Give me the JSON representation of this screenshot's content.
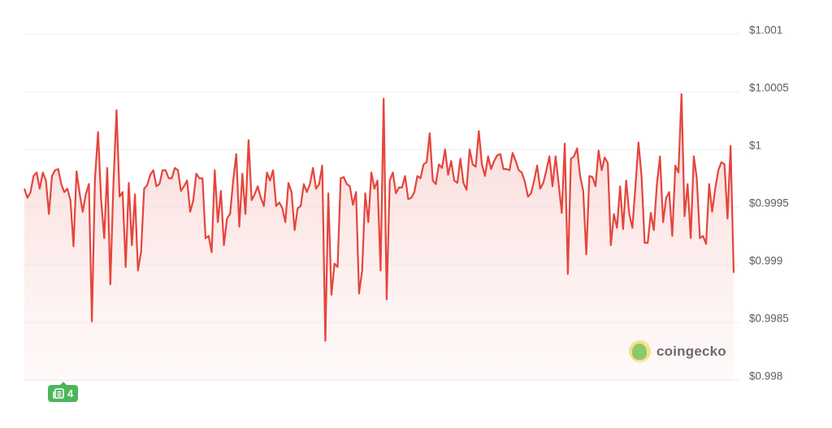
{
  "chart_data": {
    "type": "line",
    "title": "",
    "xlabel": "",
    "ylabel": "",
    "ylim": [
      0.99775,
      1.0011
    ],
    "y_ticks": [
      {
        "value": 1.001,
        "label": "$1.001"
      },
      {
        "value": 1.0005,
        "label": "$1.0005"
      },
      {
        "value": 1.0,
        "label": "$1"
      },
      {
        "value": 0.9995,
        "label": "$0.9995"
      },
      {
        "value": 0.999,
        "label": "$0.999"
      },
      {
        "value": 0.9985,
        "label": "$0.9985"
      },
      {
        "value": 0.998,
        "label": "$0.998"
      }
    ],
    "grid": true,
    "y_axis_position": "right",
    "line_color": "#e5453c",
    "fill": "gradient",
    "values": [
      0.99966,
      0.99958,
      0.99963,
      0.99977,
      0.9998,
      0.99966,
      0.9998,
      0.99973,
      0.99944,
      0.99977,
      0.99982,
      0.99983,
      0.9997,
      0.99963,
      0.99966,
      0.99956,
      0.99916,
      0.99981,
      0.99962,
      0.99946,
      0.99961,
      0.9997,
      0.99851,
      0.99975,
      1.00015,
      0.99956,
      0.99923,
      0.99984,
      0.99883,
      0.9997,
      1.00034,
      0.99959,
      0.99963,
      0.99898,
      0.99971,
      0.99917,
      0.99961,
      0.99895,
      0.99911,
      0.99966,
      0.99969,
      0.99978,
      0.99982,
      0.99968,
      0.9997,
      0.99982,
      0.99982,
      0.99975,
      0.99975,
      0.99984,
      0.99982,
      0.99964,
      0.99968,
      0.99973,
      0.99946,
      0.99956,
      0.99979,
      0.99975,
      0.99975,
      0.99923,
      0.99925,
      0.99911,
      0.99982,
      0.99937,
      0.99964,
      0.99917,
      0.9994,
      0.99944,
      0.99973,
      0.99996,
      0.99933,
      0.99979,
      0.99944,
      1.00008,
      0.99956,
      0.99961,
      0.99968,
      0.99958,
      0.99951,
      0.9998,
      0.99973,
      0.99982,
      0.99951,
      0.99954,
      0.99949,
      0.99937,
      0.99971,
      0.99963,
      0.9993,
      0.99949,
      0.99951,
      0.9997,
      0.99963,
      0.9997,
      0.99984,
      0.99966,
      0.9997,
      0.99986,
      0.99834,
      0.99962,
      0.99874,
      0.99901,
      0.99898,
      0.99975,
      0.99976,
      0.9997,
      0.99968,
      0.99952,
      0.99963,
      0.99875,
      0.99895,
      0.99962,
      0.99937,
      0.9998,
      0.99966,
      0.99973,
      0.99895,
      1.00044,
      0.9987,
      0.99973,
      0.9998,
      0.99962,
      0.99967,
      0.99967,
      0.99977,
      0.99957,
      0.99958,
      0.99963,
      0.99977,
      0.99975,
      0.99987,
      0.99989,
      1.00014,
      0.99973,
      0.9997,
      0.99987,
      0.99984,
      1.0,
      0.99978,
      0.9999,
      0.99973,
      0.99971,
      0.99992,
      0.99971,
      0.99965,
      1.0,
      0.99987,
      0.99985,
      1.00016,
      0.99987,
      0.99977,
      0.99994,
      0.99983,
      0.9999,
      0.99995,
      0.99996,
      0.99983,
      0.99983,
      0.99982,
      0.99997,
      0.9999,
      0.99982,
      0.9998,
      0.99972,
      0.99959,
      0.99962,
      0.99973,
      0.99986,
      0.99966,
      0.99971,
      0.99982,
      0.99994,
      0.99968,
      0.99994,
      0.9997,
      0.99945,
      1.00005,
      0.99892,
      0.99992,
      0.99994,
      1.00001,
      0.99977,
      0.99964,
      0.99909,
      0.99977,
      0.99976,
      0.99968,
      0.99999,
      0.99982,
      0.99993,
      0.99988,
      0.99917,
      0.99944,
      0.99932,
      0.99968,
      0.99931,
      0.99973,
      0.99944,
      0.99932,
      0.99968,
      1.00006,
      0.99977,
      0.99919,
      0.99919,
      0.99945,
      0.9993,
      0.9997,
      0.99994,
      0.99937,
      0.99958,
      0.99963,
      0.99925,
      0.99986,
      0.9998,
      1.00048,
      0.99942,
      0.9997,
      0.99923,
      0.99994,
      0.99975,
      0.99923,
      0.99925,
      0.99918,
      0.9997,
      0.99946,
      0.99966,
      0.99982,
      0.99989,
      0.99987,
      0.9994,
      1.00003,
      0.99893
    ]
  },
  "news_badge": {
    "icon": "newspaper-icon",
    "count": "4",
    "color": "#4cb65a"
  },
  "watermark": {
    "text": "coingecko",
    "icon": "gecko-logo-icon"
  }
}
